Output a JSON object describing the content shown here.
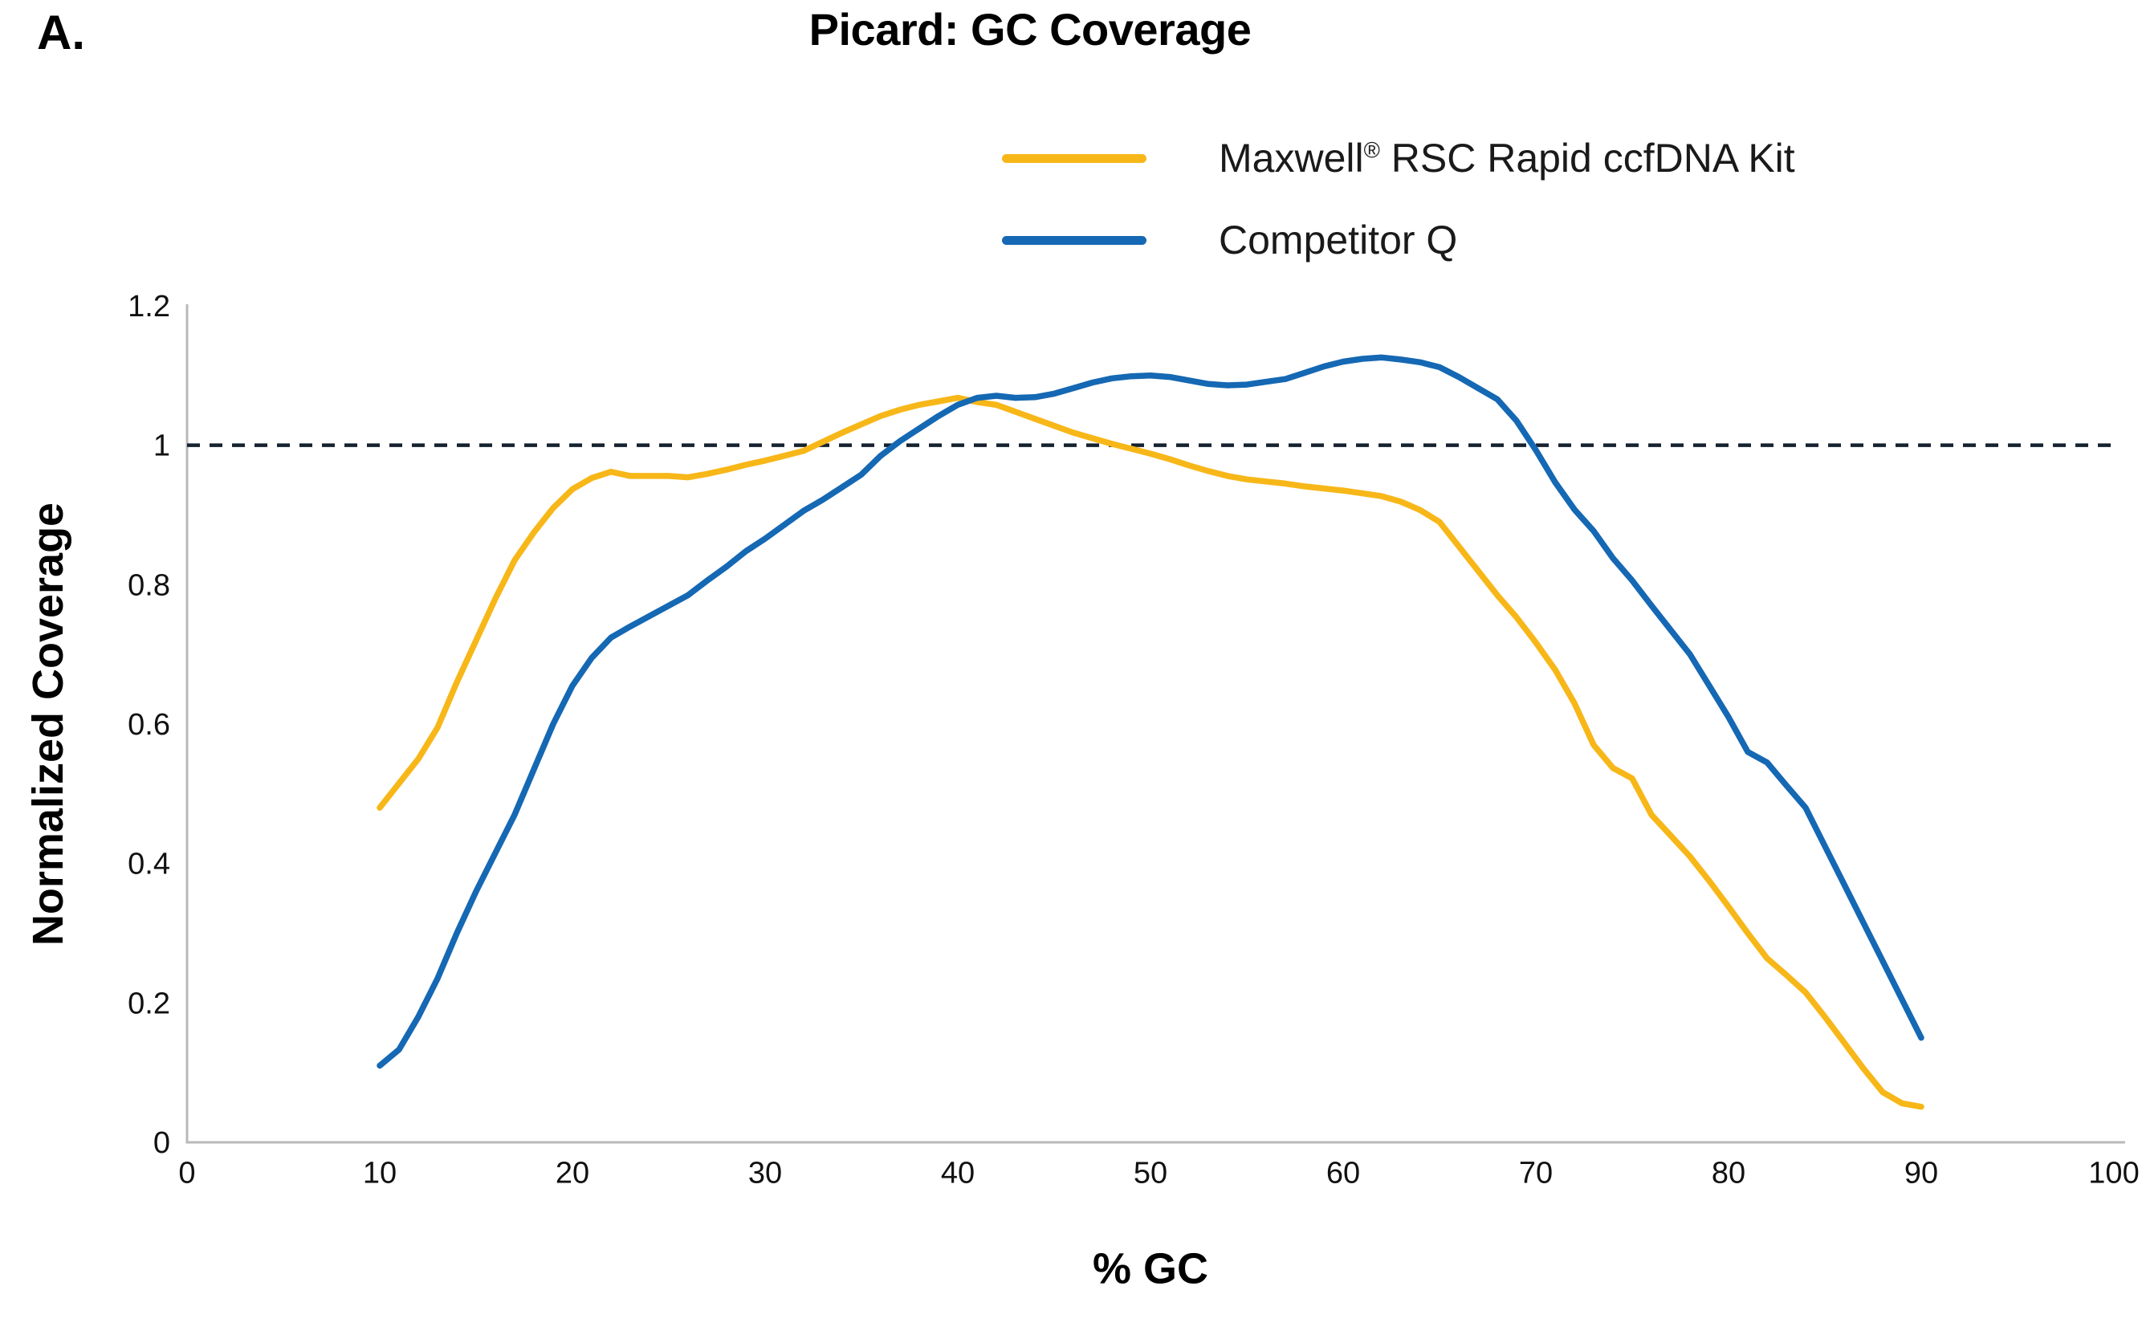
{
  "panel_label": "A.",
  "chart_data": {
    "type": "line",
    "title": "Picard: GC Coverage",
    "xlabel": "% GC",
    "ylabel": "Normalized Coverage",
    "xlim": [
      0,
      100
    ],
    "ylim": [
      0,
      1.2
    ],
    "xticks": {
      "values": [
        0,
        10,
        20,
        30,
        40,
        50,
        60,
        70,
        80,
        90,
        100
      ],
      "labels": [
        "0",
        "10",
        "20",
        "30",
        "40",
        "50",
        "60",
        "70",
        "80",
        "90",
        "100"
      ]
    },
    "yticks": {
      "values": [
        0,
        0.2,
        0.4,
        0.6,
        0.8,
        1,
        1.2
      ],
      "labels": [
        "0",
        "0.2",
        "0.4",
        "0.6",
        "0.8",
        "1",
        "1.2"
      ]
    },
    "grid": false,
    "axis_color": "#B9B9B9",
    "text_color": "#111111",
    "reference_line": {
      "y": 1,
      "style": "dashed",
      "color": "#16222E"
    },
    "legend_position": "top-right",
    "legend_entries": [
      {
        "label_pre": "Maxwell",
        "label_sup": "®",
        "label_post": " RSC Rapid ccfDNA Kit",
        "color": "#F7B718"
      },
      {
        "label_pre": "Competitor Q",
        "label_sup": "",
        "label_post": "",
        "color": "#1568B3"
      }
    ],
    "series": [
      {
        "name": "Maxwell® RSC Rapid ccfDNA Kit",
        "color": "#F7B718",
        "x_start": 10,
        "x_step": 1,
        "values": [
          0.48,
          0.515,
          0.55,
          0.595,
          0.66,
          0.72,
          0.78,
          0.835,
          0.875,
          0.91,
          0.937,
          0.953,
          0.962,
          0.956,
          0.956,
          0.956,
          0.954,
          0.959,
          0.965,
          0.972,
          0.978,
          0.985,
          0.992,
          1.005,
          1.018,
          1.03,
          1.042,
          1.051,
          1.058,
          1.063,
          1.068,
          1.062,
          1.058,
          1.048,
          1.038,
          1.028,
          1.018,
          1.01,
          1.002,
          0.995,
          0.988,
          0.98,
          0.971,
          0.963,
          0.956,
          0.951,
          0.948,
          0.945,
          0.941,
          0.938,
          0.935,
          0.931,
          0.927,
          0.919,
          0.907,
          0.89,
          0.855,
          0.82,
          0.785,
          0.753,
          0.717,
          0.678,
          0.63,
          0.57,
          0.537,
          0.522,
          0.47,
          0.44,
          0.41,
          0.375,
          0.338,
          0.3,
          0.264,
          0.24,
          0.215,
          0.18,
          0.143,
          0.106,
          0.072,
          0.056,
          0.051
        ]
      },
      {
        "name": "Competitor Q",
        "color": "#1568B3",
        "x_start": 10,
        "x_step": 1,
        "values": [
          0.11,
          0.133,
          0.18,
          0.235,
          0.3,
          0.36,
          0.415,
          0.47,
          0.535,
          0.6,
          0.655,
          0.695,
          0.724,
          0.74,
          0.755,
          0.77,
          0.785,
          0.806,
          0.826,
          0.848,
          0.866,
          0.886,
          0.906,
          0.922,
          0.94,
          0.958,
          0.985,
          1.006,
          1.024,
          1.042,
          1.058,
          1.068,
          1.071,
          1.068,
          1.069,
          1.074,
          1.082,
          1.09,
          1.096,
          1.099,
          1.1,
          1.098,
          1.093,
          1.088,
          1.086,
          1.087,
          1.091,
          1.095,
          1.104,
          1.113,
          1.12,
          1.124,
          1.126,
          1.123,
          1.119,
          1.112,
          1.098,
          1.082,
          1.066,
          1.035,
          0.993,
          0.947,
          0.908,
          0.877,
          0.838,
          0.806,
          0.77,
          0.735,
          0.7,
          0.655,
          0.61,
          0.56,
          0.545,
          0.512,
          0.48,
          0.425,
          0.37,
          0.315,
          0.26,
          0.205,
          0.15
        ]
      }
    ]
  }
}
